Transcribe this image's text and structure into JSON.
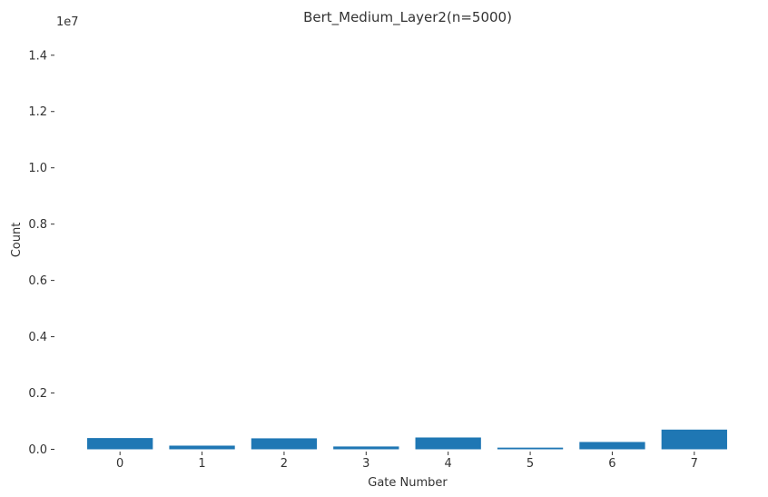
{
  "chart_data": {
    "type": "bar",
    "title": "Bert_Medium_Layer2(n=5000)",
    "xlabel": "Gate Number",
    "ylabel": "Count",
    "y_offset_label": "1e7",
    "categories": [
      "0",
      "1",
      "2",
      "3",
      "4",
      "5",
      "6",
      "7"
    ],
    "values": [
      400000,
      130000,
      390000,
      100000,
      420000,
      60000,
      260000,
      700000
    ],
    "ylim": [
      0,
      14800000
    ],
    "yticks": [
      0,
      2000000,
      4000000,
      6000000,
      8000000,
      10000000,
      12000000,
      14000000
    ],
    "ytick_labels": [
      "0.0",
      "0.2",
      "0.4",
      "0.6",
      "0.8",
      "1.0",
      "1.2",
      "1.4"
    ],
    "bar_color": "#1f77b4",
    "grid": false,
    "legend": "none"
  }
}
